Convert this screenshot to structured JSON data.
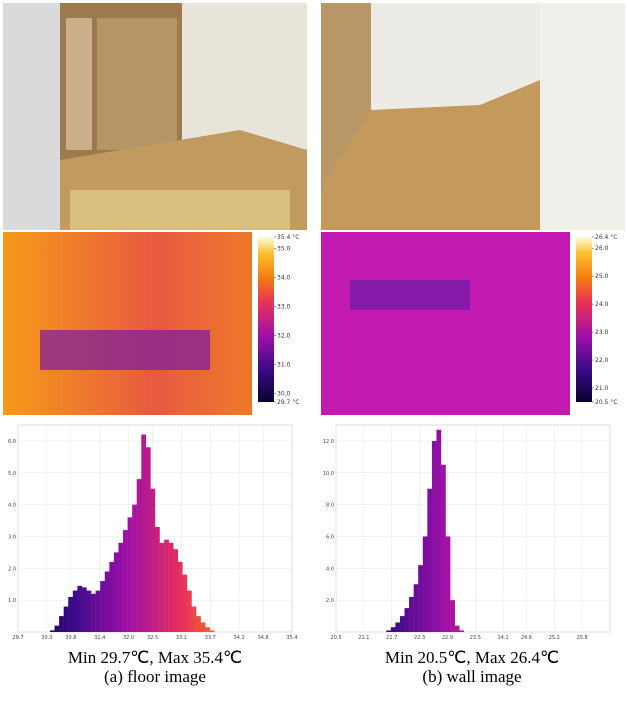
{
  "panels": [
    {
      "caption_stats": "Min 29.7℃, Max 35.4℃",
      "caption": "(a) floor image",
      "colorbar": {
        "ticks": [
          {
            "value": 35.4,
            "label": "35.4 °C"
          },
          {
            "value": 35,
            "label": "35.0"
          },
          {
            "value": 34,
            "label": "34.0"
          },
          {
            "value": 33,
            "label": "33.0"
          },
          {
            "value": 32,
            "label": "32.0"
          },
          {
            "value": 31,
            "label": "31.0"
          },
          {
            "value": 30,
            "label": "30.0"
          },
          {
            "value": 29.7,
            "label": "29.7 °C"
          }
        ]
      },
      "histogram": {
        "type": "histogram",
        "xlim": [
          29.7,
          35.4
        ],
        "ylim": [
          0,
          6.5
        ],
        "xticks": [
          29.7,
          30.3,
          30.8,
          31.4,
          {
            "value": 32,
            "label": "32.0"
          },
          32.5,
          33.1,
          33.7,
          34.3,
          34.8,
          35.4
        ],
        "yticks": [
          {
            "value": 1,
            "label": "1.0"
          },
          {
            "value": 2,
            "label": "2.0"
          },
          {
            "value": 3,
            "label": "3.0"
          },
          {
            "value": 4,
            "label": "4.0"
          },
          {
            "value": 5,
            "label": "5.0"
          },
          {
            "value": 6,
            "label": "6.0"
          }
        ],
        "values": [
          0,
          0,
          0,
          0,
          0,
          0,
          0,
          0.05,
          0.2,
          0.5,
          0.8,
          1.1,
          1.3,
          1.45,
          1.4,
          1.3,
          1.2,
          1.3,
          1.6,
          1.9,
          2.2,
          2.5,
          2.8,
          3.2,
          3.6,
          4.0,
          4.8,
          6.2,
          5.8,
          4.5,
          3.3,
          2.8,
          2.9,
          2.8,
          2.6,
          2.2,
          1.8,
          1.3,
          0.8,
          0.5,
          0.3,
          0.15,
          0.05,
          0,
          0,
          0,
          0,
          0,
          0,
          0,
          0,
          0,
          0,
          0,
          0,
          0,
          0,
          0,
          0,
          0
        ]
      }
    },
    {
      "caption_stats": "Min 20.5℃, Max 26.4℃",
      "caption": "(b) wall image",
      "colorbar": {
        "ticks": [
          {
            "value": 26.4,
            "label": "26.4 °C"
          },
          {
            "value": 26,
            "label": "26.0"
          },
          {
            "value": 25,
            "label": "25.0"
          },
          {
            "value": 24,
            "label": "24.0"
          },
          {
            "value": 23,
            "label": "23.0"
          },
          {
            "value": 22,
            "label": "22.0"
          },
          {
            "value": 21,
            "label": "21.0"
          },
          {
            "value": 20.5,
            "label": "20.5 °C"
          }
        ]
      },
      "histogram": {
        "type": "histogram",
        "xlim": [
          20.5,
          26.4
        ],
        "ylim": [
          0,
          13
        ],
        "xticks": [
          20.5,
          21.1,
          21.7,
          22.3,
          22.9,
          23.5,
          24.1,
          24.6,
          25.2,
          25.8
        ],
        "yticks": [
          {
            "value": 2,
            "label": "2.0"
          },
          {
            "value": 4,
            "label": "4.0"
          },
          {
            "value": 6,
            "label": "6.0"
          },
          {
            "value": 8,
            "label": "8.0"
          },
          {
            "value": 10,
            "label": "10.0"
          },
          {
            "value": 12,
            "label": "12.0"
          }
        ],
        "values": [
          0,
          0,
          0,
          0,
          0,
          0,
          0,
          0,
          0,
          0,
          0,
          0.1,
          0.3,
          0.6,
          1.0,
          1.5,
          2.2,
          3.0,
          4.2,
          6.0,
          9.0,
          12.0,
          12.7,
          10.5,
          6.0,
          2.0,
          0.4,
          0.1,
          0,
          0,
          0,
          0,
          0,
          0,
          0,
          0,
          0,
          0,
          0,
          0,
          0,
          0,
          0,
          0,
          0,
          0,
          0,
          0,
          0,
          0,
          0,
          0,
          0,
          0,
          0,
          0,
          0,
          0,
          0,
          0
        ]
      }
    }
  ]
}
